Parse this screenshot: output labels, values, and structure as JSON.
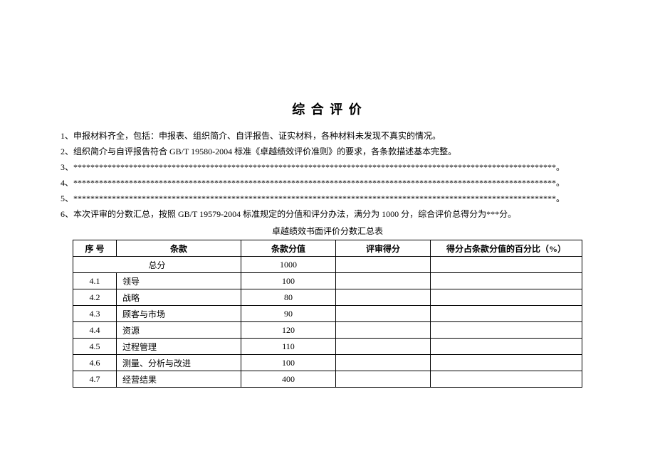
{
  "title": "综 合 评 价",
  "list": [
    "1、申报材料齐全，包括：申报表、组织简介、自评报告、证实材料，各种材料未发现不真实的情况。",
    "2、组织简介与自评报告符合 GB/T 19580-2004 标准《卓越绩效评价准则》的要求，各条款描述基本完整。",
    "3、*****************************************************************************************************************。",
    "4、*****************************************************************************************************************。",
    "5、*****************************************************************************************************************。",
    "6、本次评审的分数汇总，按照 GB/T 19579-2004 标准规定的分值和评分办法，满分为 1000 分，综合评价总得分为***分。"
  ],
  "table_caption": "卓越绩效书面评价分数汇总表",
  "headers": {
    "seq": "序 号",
    "clause": "条款",
    "clause_score": "条款分值",
    "review_score": "评审得分",
    "pct": "得分占条款分值的百分比（%）"
  },
  "total_row": {
    "label": "总分",
    "value": "1000"
  },
  "rows": [
    {
      "seq": "4.1",
      "clause": "领导",
      "score": "100"
    },
    {
      "seq": "4.2",
      "clause": "战略",
      "score": "80"
    },
    {
      "seq": "4.3",
      "clause": "顾客与市场",
      "score": "90"
    },
    {
      "seq": "4.4",
      "clause": "资源",
      "score": "120"
    },
    {
      "seq": "4.5",
      "clause": "过程管理",
      "score": "110"
    },
    {
      "seq": "4.6",
      "clause": "测量、分析与改进",
      "score": "100"
    },
    {
      "seq": "4.7",
      "clause": "经营结果",
      "score": "400"
    }
  ]
}
